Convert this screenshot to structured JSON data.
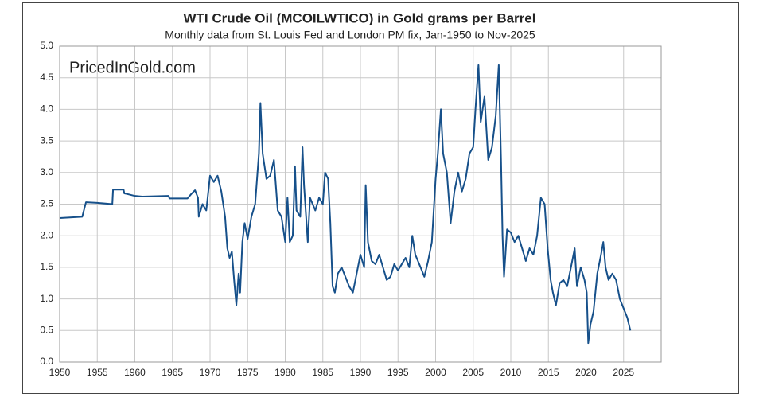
{
  "chart_data": {
    "type": "line",
    "title": "WTI Crude Oil (MCOILWTICO) in Gold grams per Barrel",
    "subtitle": "Monthly data from St. Louis Fed and London PM fix, Jan-1950 to Nov-2025",
    "watermark": "PricedInGold.com",
    "xlim": [
      1950,
      2030
    ],
    "xticks": [
      1950,
      1955,
      1960,
      1965,
      1970,
      1975,
      1980,
      1985,
      1990,
      1995,
      2000,
      2005,
      2010,
      2015,
      2020,
      2025
    ],
    "ylim": [
      0,
      5
    ],
    "yticks": [
      {
        "value": 0,
        "label": "0.0"
      },
      0.5,
      {
        "value": 1,
        "label": "1.0"
      },
      1.5,
      {
        "value": 2,
        "label": "2.0"
      },
      2.5,
      {
        "value": 3,
        "label": "3.0"
      },
      3.5,
      {
        "value": 4,
        "label": "4.0"
      },
      4.5,
      {
        "value": 5,
        "label": "5.0"
      }
    ],
    "grid": true,
    "series": [
      {
        "color": "#16508a",
        "x": [
          1950,
          1953,
          1953.5,
          1955,
          1957,
          1957.1,
          1958.5,
          1958.6,
          1959,
          1960,
          1961,
          1964.5,
          1964.6,
          1967,
          1967.5,
          1968,
          1968.4,
          1968.5,
          1969,
          1969.5,
          1970,
          1970.5,
          1971,
          1971.5,
          1972,
          1972.3,
          1972.6,
          1972.9,
          1973.2,
          1973.5,
          1973.8,
          1974,
          1974.3,
          1974.6,
          1975,
          1975.5,
          1976,
          1976.5,
          1976.7,
          1977,
          1977.5,
          1978,
          1978.5,
          1979,
          1979.5,
          1980,
          1980.3,
          1980.6,
          1981,
          1981.3,
          1981.5,
          1982,
          1982.3,
          1982.5,
          1983,
          1983.3,
          1984,
          1984.5,
          1985,
          1985.3,
          1985.7,
          1986,
          1986.3,
          1986.6,
          1987,
          1987.5,
          1988,
          1988.5,
          1989,
          1989.5,
          1990,
          1990.5,
          1990.7,
          1991,
          1991.5,
          1992,
          1992.5,
          1993,
          1993.5,
          1994,
          1994.5,
          1995,
          1995.5,
          1996,
          1996.5,
          1996.9,
          1997.3,
          1998,
          1998.5,
          1999,
          1999.5,
          2000,
          2000.3,
          2000.7,
          2001,
          2001.5,
          2002,
          2002.5,
          2003,
          2003.5,
          2004,
          2004.5,
          2005,
          2005.3,
          2005.7,
          2006,
          2006.5,
          2007,
          2007.5,
          2008,
          2008.4,
          2008.7,
          2008.9,
          2009.1,
          2009.5,
          2010,
          2010.5,
          2011,
          2011.5,
          2012,
          2012.5,
          2013,
          2013.5,
          2014,
          2014.5,
          2014.9,
          2015.3,
          2015.6,
          2016,
          2016.5,
          2017,
          2017.5,
          2018,
          2018.5,
          2018.8,
          2019.3,
          2019.8,
          2020.1,
          2020.3,
          2020.6,
          2021,
          2021.5,
          2022,
          2022.3,
          2022.6,
          2023,
          2023.5,
          2024,
          2024.5,
          2025,
          2025.5,
          2025.9
        ],
        "values": [
          2.28,
          2.3,
          2.53,
          2.52,
          2.5,
          2.73,
          2.73,
          2.67,
          2.66,
          2.63,
          2.62,
          2.63,
          2.59,
          2.59,
          2.66,
          2.72,
          2.6,
          2.3,
          2.5,
          2.4,
          2.95,
          2.85,
          2.95,
          2.7,
          2.3,
          1.8,
          1.65,
          1.75,
          1.3,
          0.9,
          1.4,
          1.1,
          1.9,
          2.2,
          1.95,
          2.3,
          2.5,
          3.3,
          4.1,
          3.3,
          2.9,
          2.95,
          3.2,
          2.4,
          2.3,
          1.9,
          2.6,
          1.9,
          2.0,
          3.1,
          2.4,
          2.3,
          3.4,
          2.8,
          1.9,
          2.6,
          2.4,
          2.6,
          2.5,
          3.0,
          2.9,
          2.2,
          1.2,
          1.1,
          1.4,
          1.5,
          1.35,
          1.2,
          1.1,
          1.4,
          1.7,
          1.5,
          2.8,
          1.9,
          1.6,
          1.55,
          1.7,
          1.5,
          1.3,
          1.35,
          1.55,
          1.45,
          1.55,
          1.65,
          1.5,
          2.0,
          1.7,
          1.5,
          1.35,
          1.6,
          1.9,
          2.9,
          3.3,
          4.0,
          3.3,
          3.0,
          2.2,
          2.7,
          3.0,
          2.7,
          2.9,
          3.3,
          3.4,
          4.0,
          4.7,
          3.8,
          4.2,
          3.2,
          3.4,
          3.9,
          4.7,
          3.2,
          2.0,
          1.35,
          2.1,
          2.05,
          1.9,
          2.0,
          1.8,
          1.6,
          1.8,
          1.7,
          2.0,
          2.6,
          2.5,
          1.8,
          1.3,
          1.1,
          0.9,
          1.25,
          1.3,
          1.2,
          1.5,
          1.8,
          1.2,
          1.5,
          1.3,
          1.1,
          0.3,
          0.6,
          0.8,
          1.4,
          1.7,
          1.9,
          1.5,
          1.3,
          1.4,
          1.3,
          1.0,
          0.85,
          0.7,
          0.5
        ]
      }
    ]
  }
}
